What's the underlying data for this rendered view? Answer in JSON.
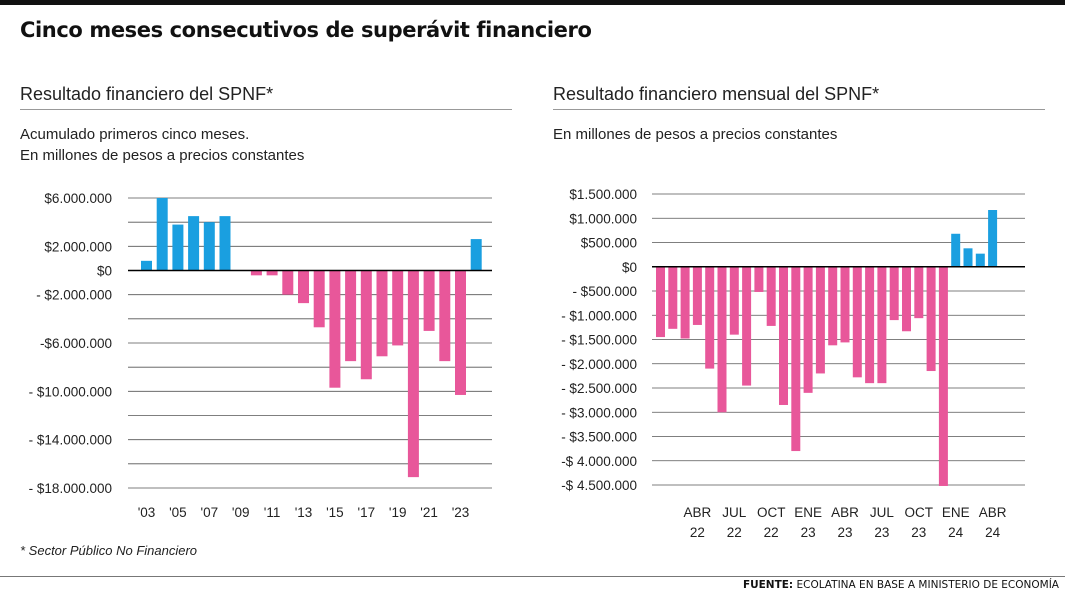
{
  "headline": "Cinco meses consecutivos de superávit financiero",
  "footnote": "* Sector Público No Financiero",
  "source_label": "FUENTE:",
  "source_text": "ECOLATINA EN BASE A MINISTERIO DE ECONOMÍA",
  "colors": {
    "positive": "#1a9fe0",
    "negative": "#e8579a",
    "grid": "#555555",
    "baseline": "#000000"
  },
  "left": {
    "title": "Resultado financiero del SPNF*",
    "subtitle1": "Acumulado primeros cinco meses.",
    "subtitle2": "En millones de pesos a precios constantes"
  },
  "right": {
    "title": "Resultado financiero mensual del SPNF*",
    "subtitle1": "En millones de pesos a precios constantes"
  },
  "chart_data": [
    {
      "type": "bar",
      "title": "Resultado financiero del SPNF*",
      "ylim": [
        -18000000,
        6000000
      ],
      "y_ticks": [
        6000000,
        4000000,
        2000000,
        0,
        -2000000,
        -4000000,
        -6000000,
        -8000000,
        -10000000,
        -12000000,
        -14000000,
        -16000000,
        -18000000
      ],
      "y_tick_labels": [
        "$6.000.000",
        "",
        "$2.000.000",
        "$0",
        "- $2.000.000",
        "",
        "-$6.000.000",
        "",
        "- $10.000.000",
        "",
        "- $14.000.000",
        "",
        "- $18.000.000"
      ],
      "x_tick_labels": [
        "'03",
        "'05",
        "'07",
        "'09",
        "'11",
        "'13",
        "'15",
        "'17",
        "'19",
        "'21",
        "'23"
      ],
      "categories": [
        "2003",
        "2004",
        "2005",
        "2006",
        "2007",
        "2008",
        "2009",
        "2010",
        "2011",
        "2012",
        "2013",
        "2014",
        "2015",
        "2016",
        "2017",
        "2018",
        "2019",
        "2020",
        "2021",
        "2022",
        "2023",
        "2024"
      ],
      "values": [
        800000,
        6000000,
        3800000,
        4500000,
        4000000,
        4500000,
        0,
        -400000,
        -400000,
        -2000000,
        -2700000,
        -4700000,
        -9700000,
        -7500000,
        -9000000,
        -7100000,
        -6200000,
        -17100000,
        -5000000,
        -7500000,
        -10300000,
        2600000
      ]
    },
    {
      "type": "bar",
      "title": "Resultado financiero mensual del SPNF*",
      "ylim": [
        -4500000,
        1500000
      ],
      "y_ticks": [
        1500000,
        1000000,
        500000,
        0,
        -500000,
        -1000000,
        -1500000,
        -2000000,
        -2500000,
        -3000000,
        -3500000,
        -4000000,
        -4500000
      ],
      "y_tick_labels": [
        "$1.500.000",
        "$1.000.000",
        "$500.000",
        "$0",
        "- $500.000",
        "- $1.000.000",
        "- $1.500.000",
        "- $2.000.000",
        "- $2.500.000",
        "- $3.000.000",
        "- $3.500.000",
        "-$ 4.000.000",
        "-$ 4.500.000"
      ],
      "x_tick_labels": [
        [
          "ABR",
          "22"
        ],
        [
          "JUL",
          "22"
        ],
        [
          "OCT",
          "22"
        ],
        [
          "ENE",
          "23"
        ],
        [
          "ABR",
          "23"
        ],
        [
          "JUL",
          "23"
        ],
        [
          "OCT",
          "23"
        ],
        [
          "ENE",
          "24"
        ],
        [
          "ABR",
          "24"
        ]
      ],
      "categories": [
        "ene-22",
        "feb-22",
        "mar-22",
        "abr-22",
        "may-22",
        "jun-22",
        "jul-22",
        "ago-22",
        "sep-22",
        "oct-22",
        "nov-22",
        "dic-22",
        "ene-23",
        "feb-23",
        "mar-23",
        "abr-23",
        "may-23",
        "jun-23",
        "jul-23",
        "ago-23",
        "sep-23",
        "oct-23",
        "nov-23",
        "dic-23",
        "ene-24",
        "feb-24",
        "mar-24",
        "abr-24"
      ],
      "values": [
        -1450000,
        -1280000,
        -1480000,
        -1200000,
        -2100000,
        -3000000,
        -1400000,
        -2450000,
        -520000,
        -1220000,
        -2850000,
        -3800000,
        -2600000,
        -2200000,
        -1620000,
        -1560000,
        -2280000,
        -2400000,
        -2400000,
        -1100000,
        -1330000,
        -1060000,
        -2150000,
        -4520000,
        680000,
        380000,
        270000,
        1170000
      ]
    }
  ]
}
